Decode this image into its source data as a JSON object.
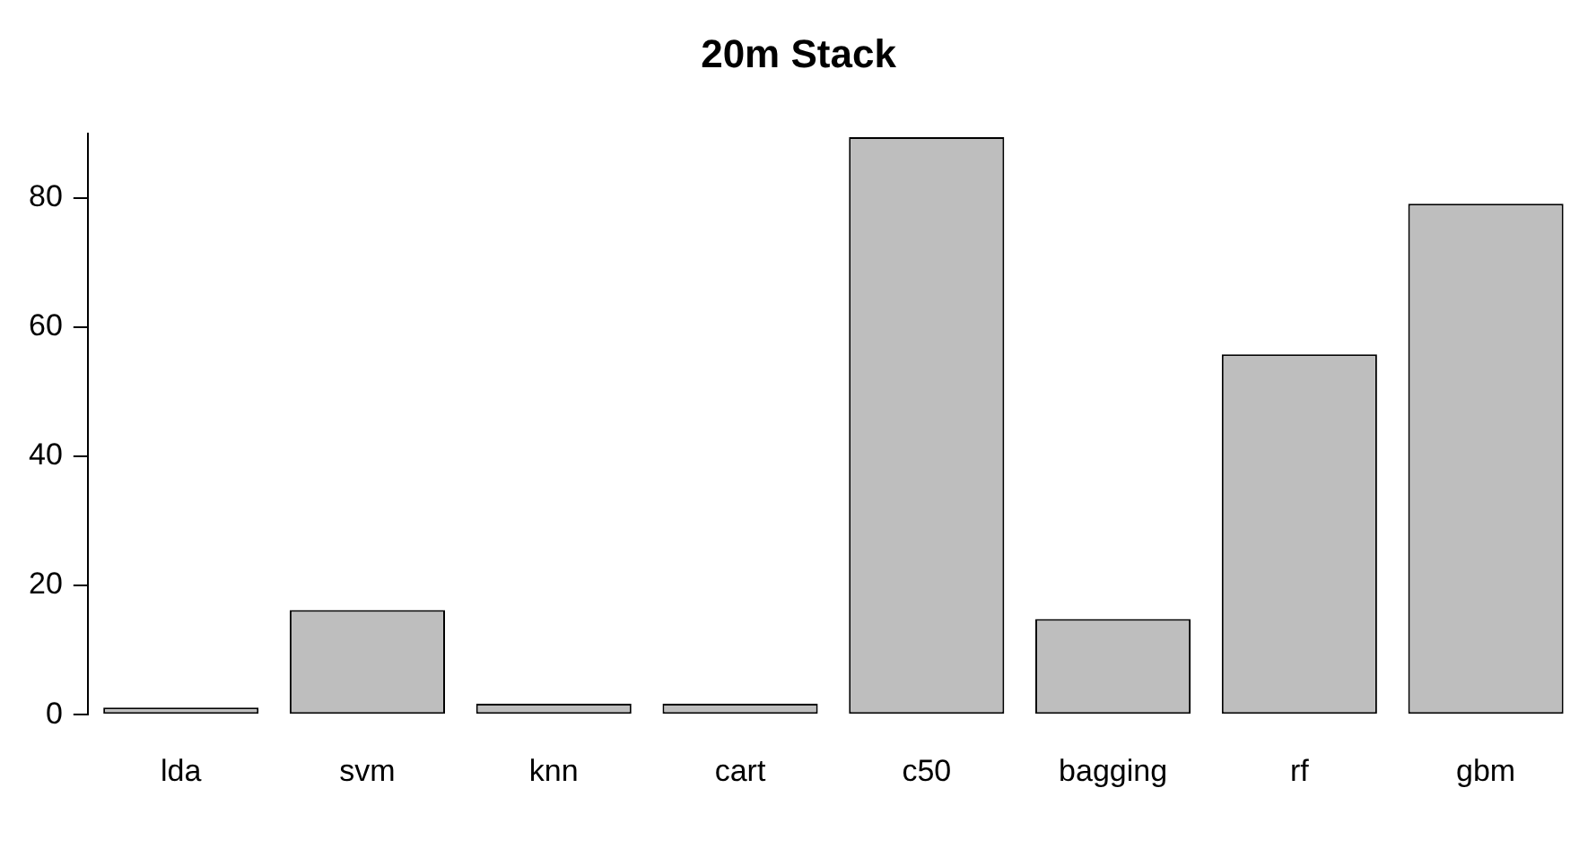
{
  "chart_data": {
    "type": "bar",
    "title": "20m Stack",
    "categories": [
      "lda",
      "svm",
      "knn",
      "cart",
      "c50",
      "bagging",
      "rf",
      "gbm"
    ],
    "values": [
      1.1,
      16.2,
      1.7,
      1.7,
      89.4,
      14.8,
      55.8,
      79.1
    ],
    "color": "#bebebe",
    "ylim": [
      0,
      90
    ],
    "yticks": [
      0,
      20,
      40,
      60,
      80
    ],
    "grid": false,
    "legend": false
  }
}
